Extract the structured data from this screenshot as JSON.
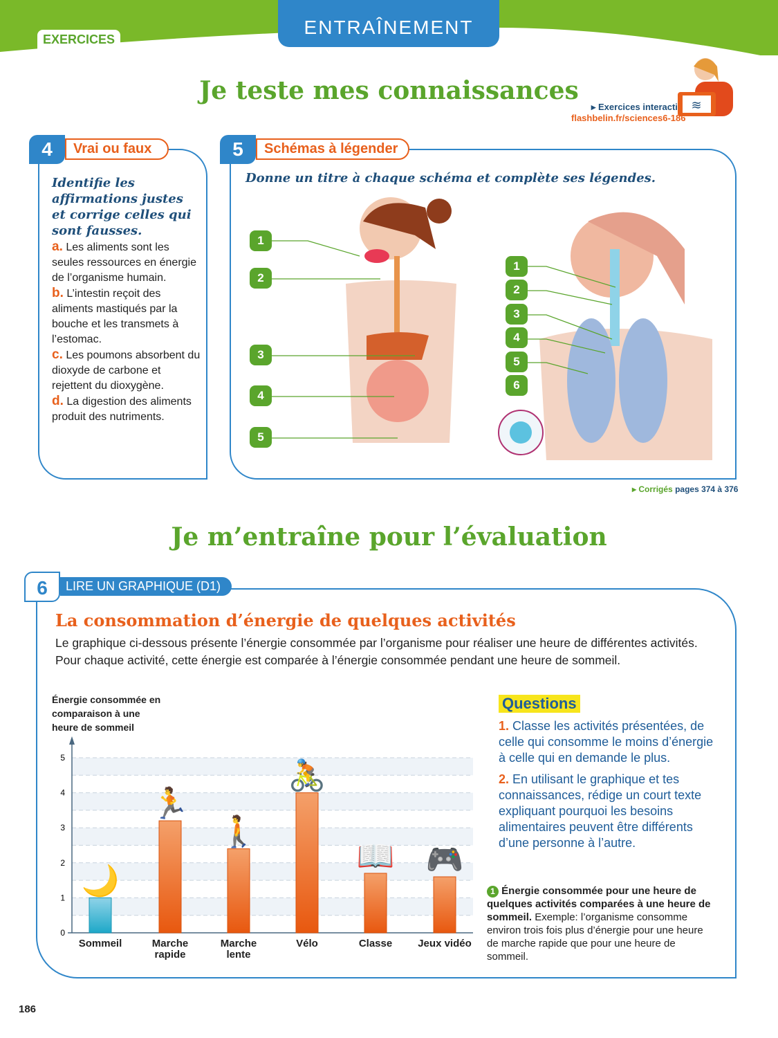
{
  "header": {
    "section_tag": "EXERCICES",
    "banner": "ENTRAÎNEMENT",
    "title": "Je teste mes connaissances",
    "interactive_label": "▸ Exercices interactifs",
    "interactive_link": "flashbelin.fr/sciences6-186"
  },
  "ex4": {
    "number": "4",
    "title": "Vrai ou faux",
    "instruction": "Identifie les affirmations justes et corrige celles qui sont fausses.",
    "items": [
      {
        "letter": "a.",
        "text": "Les aliments sont les seules ressources en énergie de l’organisme humain."
      },
      {
        "letter": "b.",
        "text": "L’intestin reçoit des aliments mastiqués par la bouche et les transmets à l’estomac."
      },
      {
        "letter": "c.",
        "text": "Les poumons absorbent du dioxyde de carbone et rejettent du dioxygène."
      },
      {
        "letter": "d.",
        "text": "La digestion des aliments produit des nutriments."
      }
    ]
  },
  "ex5": {
    "number": "5",
    "title": "Schémas à légender",
    "instruction": "Donne un titre à chaque schéma et complète ses légendes.",
    "diagram1_labels": [
      "1",
      "2",
      "3",
      "4",
      "5"
    ],
    "diagram2_labels": [
      "1",
      "2",
      "3",
      "4",
      "5",
      "6"
    ]
  },
  "corriges": {
    "prefix": "▸ Corrigés",
    "text": "pages 374 à 376"
  },
  "section2_title": "Je m’entraîne pour l’évaluation",
  "ex6": {
    "number": "6",
    "tag": "LIRE UN GRAPHIQUE (D1)",
    "title": "La consommation d’énergie de quelques activités",
    "intro": "Le graphique ci-dessous présente l’énergie consommée par l’organisme pour réaliser une heure de différentes activités. Pour chaque activité, cette énergie est comparée à l’énergie consommée pendant une heure de sommeil.",
    "questions_title": "Questions",
    "questions": [
      {
        "n": "1.",
        "text": "Classe les activités présentées, de celle qui consomme le moins d’énergie à celle qui en demande le plus."
      },
      {
        "n": "2.",
        "text": "En utilisant le graphique et tes connaissances, rédige un court texte expliquant pourquoi les besoins alimentaires peuvent être différents d’une personne à l’autre."
      }
    ],
    "caption_num": "1",
    "caption_bold": "Énergie consommée pour une heure de quelques activités comparées à une heure de sommeil.",
    "caption_rest": " Exemple: l’organisme consomme environ trois fois plus d’énergie pour une heure de marche rapide que pour une heure de sommeil."
  },
  "chart_data": {
    "type": "bar",
    "ylabel": "Énergie consommée en comparaison à une heure de sommeil",
    "categories": [
      "Sommeil",
      "Marche rapide",
      "Marche lente",
      "Vélo",
      "Classe",
      "Jeux vidéo"
    ],
    "values": [
      1,
      3.2,
      2.4,
      4,
      1.7,
      1.6
    ],
    "ylim": [
      0,
      5
    ],
    "yticks": [
      "0",
      "1",
      "2",
      "3",
      "4",
      "5"
    ],
    "grid": true,
    "colors": {
      "Sommeil": "#1ea8c8",
      "others": "#e8601c"
    }
  },
  "page_number": "186"
}
